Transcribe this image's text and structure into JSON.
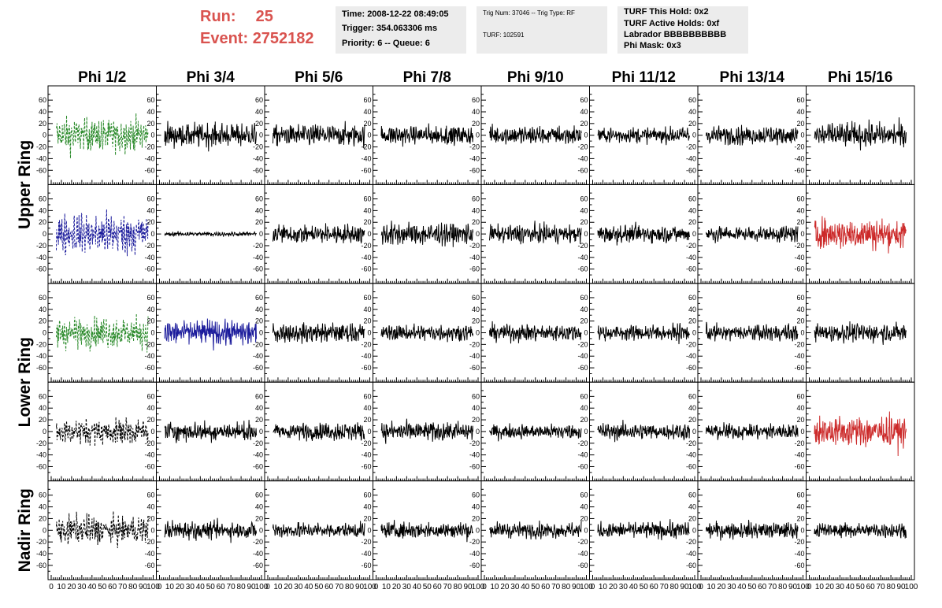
{
  "header": {
    "run_label": "Run:",
    "run_value": "25",
    "event_label": "Event:",
    "event_value": "2752182",
    "accent_color": "#d9534f",
    "box1": [
      "Time: 2008-12-22 08:49:05",
      "Trigger: 354.063306 ms",
      "Priority: 6 -- Queue: 6"
    ],
    "box2": [
      "Trig Num: 37046 -- Trig Type: RF",
      "TURF: 102591"
    ],
    "box3": [
      "TURF This Hold: 0x2",
      "TURF Active Holds: 0xf",
      "Labrador BBBBBBBBBB",
      "Phi Mask: 0x3"
    ]
  },
  "chart_data": {
    "type": "line",
    "columns": [
      "Phi 1/2",
      "Phi 3/4",
      "Phi 5/6",
      "Phi 7/8",
      "Phi 9/10",
      "Phi 11/12",
      "Phi 13/14",
      "Phi 15/16"
    ],
    "row_labels": [
      "Upper Ring",
      "Lower Ring",
      "Nadir Ring"
    ],
    "ylim": [
      -75,
      75
    ],
    "yticks": [
      -60,
      -40,
      -20,
      0,
      20,
      40,
      60
    ],
    "xlim": [
      0,
      100
    ],
    "xticks": [
      0,
      10,
      20,
      30,
      40,
      50,
      60,
      70,
      80,
      90,
      100
    ],
    "panel_colors": [
      [
        "#2a8a2a",
        "#000000",
        "#000000",
        "#000000",
        "#000000",
        "#000000",
        "#000000",
        "#000000"
      ],
      [
        "#1c1c9c",
        "#000000",
        "#000000",
        "#000000",
        "#000000",
        "#000000",
        "#000000",
        "#cc2a2a"
      ],
      [
        "#2a8a2a",
        "#1c1c9c",
        "#000000",
        "#000000",
        "#000000",
        "#000000",
        "#000000",
        "#000000"
      ],
      [
        "#000000",
        "#000000",
        "#000000",
        "#000000",
        "#000000",
        "#000000",
        "#000000",
        "#cc2a2a"
      ],
      [
        "#000000",
        "#000000",
        "#000000",
        "#000000",
        "#000000",
        "#000000",
        "#000000",
        "#000000"
      ]
    ],
    "panel_dashed": [
      [
        true,
        false,
        false,
        false,
        false,
        false,
        false,
        false
      ],
      [
        true,
        false,
        false,
        false,
        false,
        false,
        false,
        false
      ],
      [
        true,
        false,
        false,
        false,
        false,
        false,
        false,
        false
      ],
      [
        true,
        false,
        false,
        false,
        false,
        false,
        false,
        false
      ],
      [
        true,
        false,
        false,
        false,
        false,
        false,
        false,
        false
      ]
    ],
    "panel_rms": [
      [
        22,
        16,
        14,
        13,
        13,
        10,
        12,
        16
      ],
      [
        28,
        3,
        13,
        15,
        12,
        12,
        11,
        20
      ],
      [
        21,
        17,
        13,
        11,
        11,
        11,
        11,
        12
      ],
      [
        17,
        13,
        12,
        13,
        10,
        11,
        11,
        21
      ],
      [
        19,
        12,
        10,
        11,
        10,
        11,
        11,
        10
      ]
    ]
  }
}
